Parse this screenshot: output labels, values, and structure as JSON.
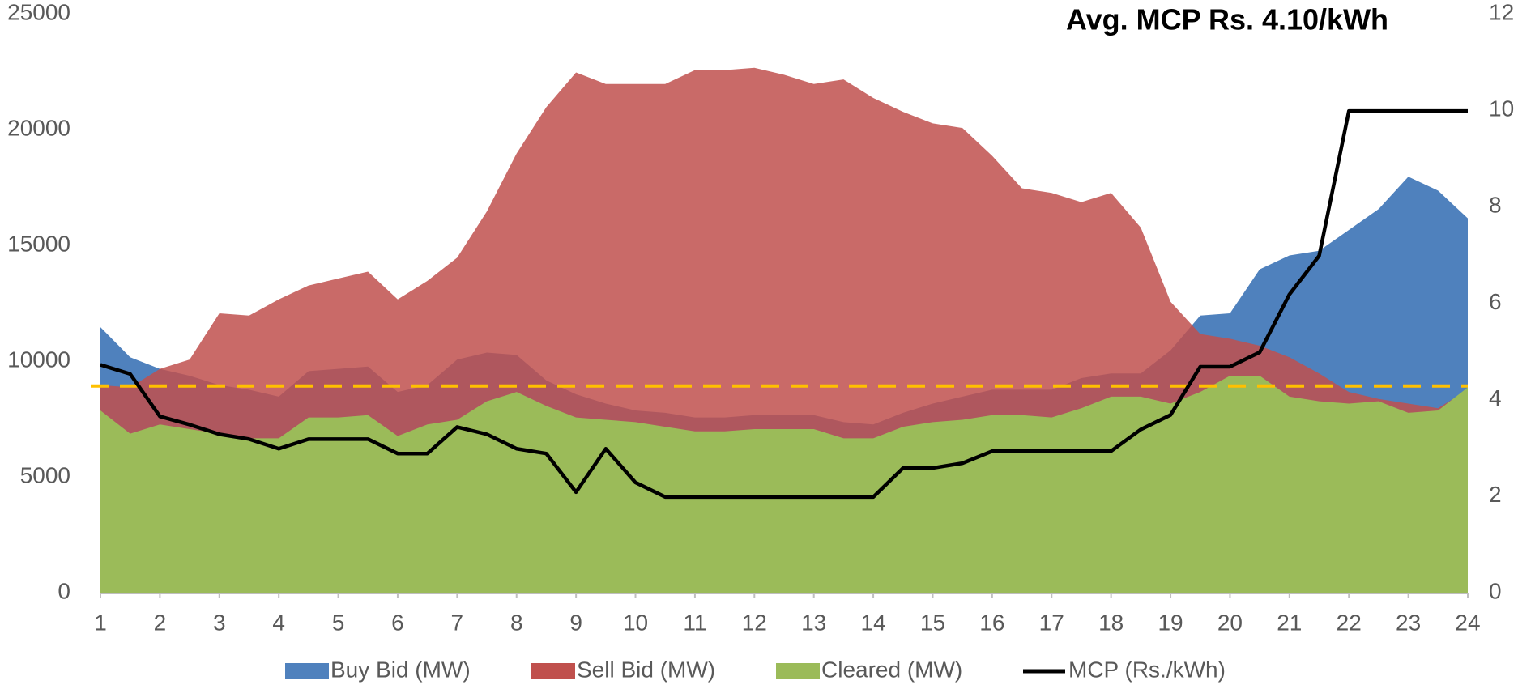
{
  "chart_data": {
    "type": "combo",
    "annotation": "Avg. MCP Rs. 4.10/kWh",
    "x": [
      1,
      1.5,
      2,
      2.5,
      3,
      3.5,
      4,
      4.5,
      5,
      5.5,
      6,
      6.5,
      7,
      7.5,
      8,
      8.5,
      9,
      9.5,
      10,
      10.5,
      11,
      11.5,
      12,
      12.5,
      13,
      13.5,
      14,
      14.5,
      15,
      15.5,
      16,
      16.5,
      17,
      17.5,
      18,
      18.5,
      19,
      19.5,
      20,
      20.5,
      21,
      21.5,
      22,
      22.5,
      23,
      23.5,
      24
    ],
    "xlim": [
      1,
      24
    ],
    "xticks": [
      1,
      2,
      3,
      4,
      5,
      6,
      7,
      8,
      9,
      10,
      11,
      12,
      13,
      14,
      15,
      16,
      17,
      18,
      19,
      20,
      21,
      22,
      23,
      24
    ],
    "ylim": [
      0,
      25000
    ],
    "yticks": [
      0,
      5000,
      10000,
      15000,
      20000,
      25000
    ],
    "y2lim": [
      0,
      12
    ],
    "y2ticks": [
      0,
      2,
      4,
      6,
      8,
      10,
      12
    ],
    "grid": false,
    "legend": "bottom",
    "series": [
      {
        "name": "Buy Bid (MW)",
        "type": "area",
        "color": "#4f81bd",
        "values": [
          11500,
          10200,
          9700,
          9400,
          9000,
          8800,
          8500,
          9600,
          9700,
          9800,
          8700,
          9000,
          10100,
          10400,
          10300,
          9200,
          8600,
          8200,
          7900,
          7800,
          7600,
          7600,
          7700,
          7700,
          7700,
          7400,
          7300,
          7800,
          8200,
          8500,
          8800,
          8800,
          8800,
          9300,
          9500,
          9500,
          10500,
          12000,
          12100,
          14000,
          14600,
          14800,
          15700,
          16600,
          18000,
          17400,
          16200
        ]
      },
      {
        "name": "Sell Bid (MW)",
        "type": "area",
        "color": "#c0504d",
        "values": [
          9000,
          8900,
          9700,
          10100,
          12100,
          12000,
          12700,
          13300,
          13600,
          13900,
          12700,
          13500,
          14500,
          16500,
          19000,
          21000,
          22500,
          22000,
          22000,
          22000,
          22600,
          22600,
          22700,
          22400,
          22000,
          22200,
          21400,
          20800,
          20300,
          20100,
          18900,
          17500,
          17300,
          16900,
          17300,
          15800,
          12600,
          11200,
          11000,
          10700,
          10200,
          9500,
          8700,
          8400,
          8200,
          8000,
          8800
        ]
      },
      {
        "name": "Cleared (MW)",
        "type": "area",
        "color": "#9bbb59",
        "values": [
          7900,
          6900,
          7300,
          7100,
          6900,
          6700,
          6700,
          7600,
          7600,
          7700,
          6800,
          7300,
          7500,
          8300,
          8700,
          8100,
          7600,
          7500,
          7400,
          7200,
          7000,
          7000,
          7100,
          7100,
          7100,
          6700,
          6700,
          7200,
          7400,
          7500,
          7700,
          7700,
          7600,
          8000,
          8500,
          8500,
          8200,
          8700,
          9400,
          9400,
          8500,
          8300,
          8200,
          8300,
          7800,
          7900,
          8900
        ]
      },
      {
        "name": "MCP (Rs./kWh)",
        "type": "line",
        "axis": "y2",
        "color": "#000000",
        "values": [
          4.74,
          4.55,
          3.67,
          3.5,
          3.3,
          3.2,
          3.0,
          3.2,
          3.2,
          3.2,
          2.9,
          2.9,
          3.45,
          3.3,
          3.0,
          2.9,
          2.1,
          3.0,
          2.3,
          2.0,
          2.0,
          2.0,
          2.0,
          2.0,
          2.0,
          2.0,
          2.0,
          2.6,
          2.6,
          2.7,
          2.95,
          2.95,
          2.95,
          2.96,
          2.95,
          3.4,
          3.7,
          4.7,
          4.7,
          5.0,
          6.2,
          7.0,
          10.0,
          10.0,
          10.0,
          10.0,
          10.0
        ]
      }
    ],
    "reference_line": {
      "value": 4.3,
      "axis": "y2",
      "color": "#ffc000"
    }
  }
}
